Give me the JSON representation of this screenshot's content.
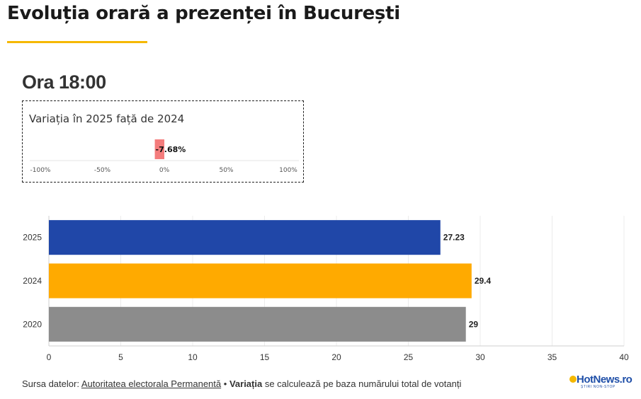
{
  "page": {
    "title": "Evoluția orară a prezenței în București",
    "hour": "Ora 18:00"
  },
  "variation": {
    "title": "Variația în 2025 față de 2024",
    "value": -7.68,
    "label": "-7.68%",
    "axis_ticks": [
      "-100%",
      "-50%",
      "0%",
      "50%",
      "100%"
    ],
    "range": [
      -100,
      100
    ],
    "bar_color": "#f47c7c"
  },
  "chart_data": {
    "type": "bar",
    "orientation": "horizontal",
    "categories": [
      "2025",
      "2024",
      "2020"
    ],
    "values": [
      27.23,
      29.4,
      29
    ],
    "value_labels": [
      "27.23",
      "29.4",
      "29"
    ],
    "colors": [
      "#2047a8",
      "#ffaa00",
      "#8c8c8c"
    ],
    "xlim": [
      0,
      40
    ],
    "x_ticks": [
      "0",
      "5",
      "10",
      "15",
      "20",
      "25",
      "30",
      "35",
      "40"
    ],
    "grid": true
  },
  "footer": {
    "source_prefix": "Sursa datelor:",
    "source_link": "Autoritatea electorala Permanentă",
    "separator": "•",
    "note_bold": "Variația",
    "note_rest": "se calculează pe baza numărului total de votanți"
  },
  "logo": {
    "text": "HotNews.ro",
    "tagline": "ȘTIRI NON-STOP"
  },
  "colors": {
    "accent": "#f5b800",
    "brand_blue": "#1f4fa8"
  }
}
